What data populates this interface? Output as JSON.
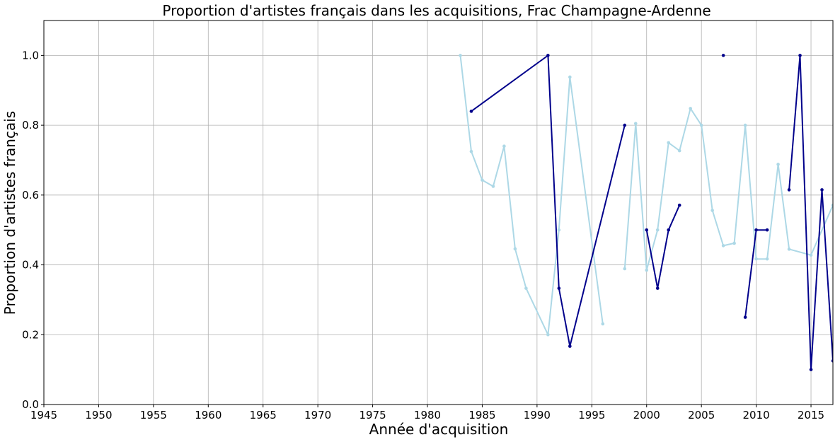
{
  "chart_data": {
    "type": "line",
    "title": "Proportion d'artistes français dans les acquisitions, Frac Champagne-Ardenne",
    "xlabel": "Année d'acquisition",
    "ylabel": "Proportion d'artistes français",
    "xlim": [
      1945,
      2017
    ],
    "ylim": [
      0,
      1.1
    ],
    "xticks": [
      1945,
      1950,
      1955,
      1960,
      1965,
      1970,
      1975,
      1980,
      1985,
      1990,
      1995,
      2000,
      2005,
      2010,
      2015
    ],
    "yticks": [
      0.0,
      0.2,
      0.4,
      0.6,
      0.8,
      1.0
    ],
    "grid": true,
    "legend": "none",
    "series": [
      {
        "color": "#add8e6",
        "points": [
          [
            1983,
            1.0
          ],
          [
            1984,
            0.725
          ],
          [
            1985,
            0.643
          ],
          [
            1986,
            0.625
          ],
          [
            1987,
            0.74
          ],
          [
            1988,
            0.446
          ],
          [
            1989,
            0.333
          ],
          [
            1991,
            0.2
          ],
          [
            1992,
            0.5
          ],
          [
            1993,
            0.938
          ],
          [
            1996,
            0.231
          ],
          null,
          [
            1998,
            0.389
          ],
          [
            1999,
            0.805
          ],
          [
            2000,
            0.385
          ],
          [
            2001,
            0.5
          ],
          [
            2002,
            0.75
          ],
          [
            2003,
            0.727
          ],
          [
            2004,
            0.848
          ],
          [
            2005,
            0.8
          ],
          [
            2006,
            0.556
          ],
          [
            2007,
            0.455
          ],
          [
            2008,
            0.462
          ],
          [
            2009,
            0.8
          ],
          [
            2010,
            0.417
          ],
          [
            2011,
            0.417
          ],
          [
            2012,
            0.688
          ],
          [
            2013,
            0.445
          ],
          [
            2015,
            0.428
          ],
          [
            2017,
            0.571
          ]
        ]
      },
      {
        "color": "#00008b",
        "points": [
          [
            1984,
            0.84
          ],
          [
            1991,
            1.0
          ],
          [
            1992,
            0.333
          ],
          [
            1993,
            0.167
          ],
          [
            1998,
            0.8
          ],
          null,
          [
            2000,
            0.5
          ],
          [
            2001,
            0.333
          ],
          [
            2002,
            0.5
          ],
          [
            2003,
            0.571
          ],
          null,
          [
            2007,
            1.0
          ],
          null,
          [
            2009,
            0.25
          ],
          [
            2010,
            0.5
          ],
          [
            2011,
            0.5
          ],
          null,
          [
            2013,
            0.615
          ],
          [
            2014,
            1.0
          ],
          [
            2015,
            0.1
          ],
          [
            2016,
            0.615
          ],
          [
            2017,
            0.125
          ]
        ]
      }
    ]
  }
}
